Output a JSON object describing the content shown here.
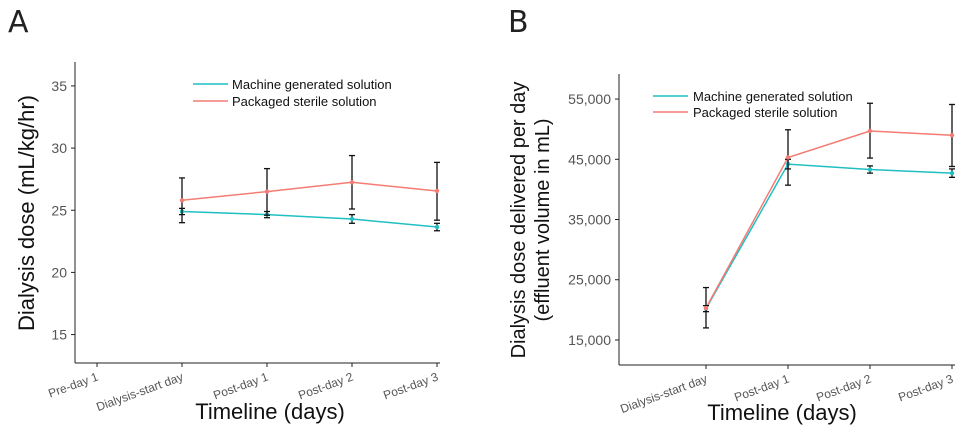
{
  "chart_data": [
    {
      "panel": "A",
      "type": "line",
      "categories": [
        "Pre-day 1",
        "Dialysis-start day",
        "Post-day 1",
        "Post-day 2",
        "Post-day 3"
      ],
      "ylabel": "Dialysis dose (mL/kg/hr)",
      "xlabel": "Timeline (days)",
      "ylim": [
        14,
        36
      ],
      "yticks": [
        15,
        20,
        25,
        30,
        35
      ],
      "ytick_labels": [
        "15",
        "20",
        "25",
        "30",
        "35"
      ],
      "grid": false,
      "legend_position": "top-right",
      "series": [
        {
          "name": "Machine generated solution",
          "color": "#1fbfc3",
          "values": [
            null,
            24.9,
            24.65,
            24.3,
            23.65
          ],
          "err_lo": [
            null,
            24.65,
            24.4,
            23.95,
            23.35
          ],
          "err_hi": [
            null,
            25.15,
            24.9,
            24.65,
            23.95
          ]
        },
        {
          "name": "Packaged sterile solution",
          "color": "#f47c74",
          "values": [
            null,
            25.8,
            26.5,
            27.25,
            26.55
          ],
          "err_lo": [
            null,
            24.0,
            24.6,
            25.1,
            24.2
          ],
          "err_hi": [
            null,
            27.6,
            28.35,
            29.4,
            28.85
          ]
        }
      ]
    },
    {
      "panel": "B",
      "type": "line",
      "categories": [
        "Dialysis-start day",
        "Post-day 1",
        "Post-day 2",
        "Post-day 3"
      ],
      "ylabel_line1": "Dialysis dose delivered per day",
      "ylabel_line2": "(effluent volume in mL)",
      "xlabel": "Timeline (days)",
      "ylim": [
        13500,
        57000
      ],
      "yticks": [
        15000,
        25000,
        35000,
        45000,
        55000
      ],
      "ytick_labels": [
        "15,000",
        "25,000",
        "35,000",
        "45,000",
        "55,000"
      ],
      "grid": false,
      "legend_position": "top-left",
      "series": [
        {
          "name": "Machine generated solution",
          "color": "#1fbfc3",
          "values": [
            20200,
            44200,
            43300,
            42700
          ],
          "err_lo": [
            19700,
            43400,
            42700,
            42000
          ],
          "err_hi": [
            20700,
            45000,
            43900,
            43400
          ]
        },
        {
          "name": "Packaged sterile solution",
          "color": "#f47c74",
          "values": [
            20300,
            45300,
            49700,
            49000
          ],
          "err_lo": [
            17000,
            40700,
            45200,
            43800
          ],
          "err_hi": [
            23700,
            49900,
            54300,
            54100
          ]
        }
      ]
    }
  ]
}
